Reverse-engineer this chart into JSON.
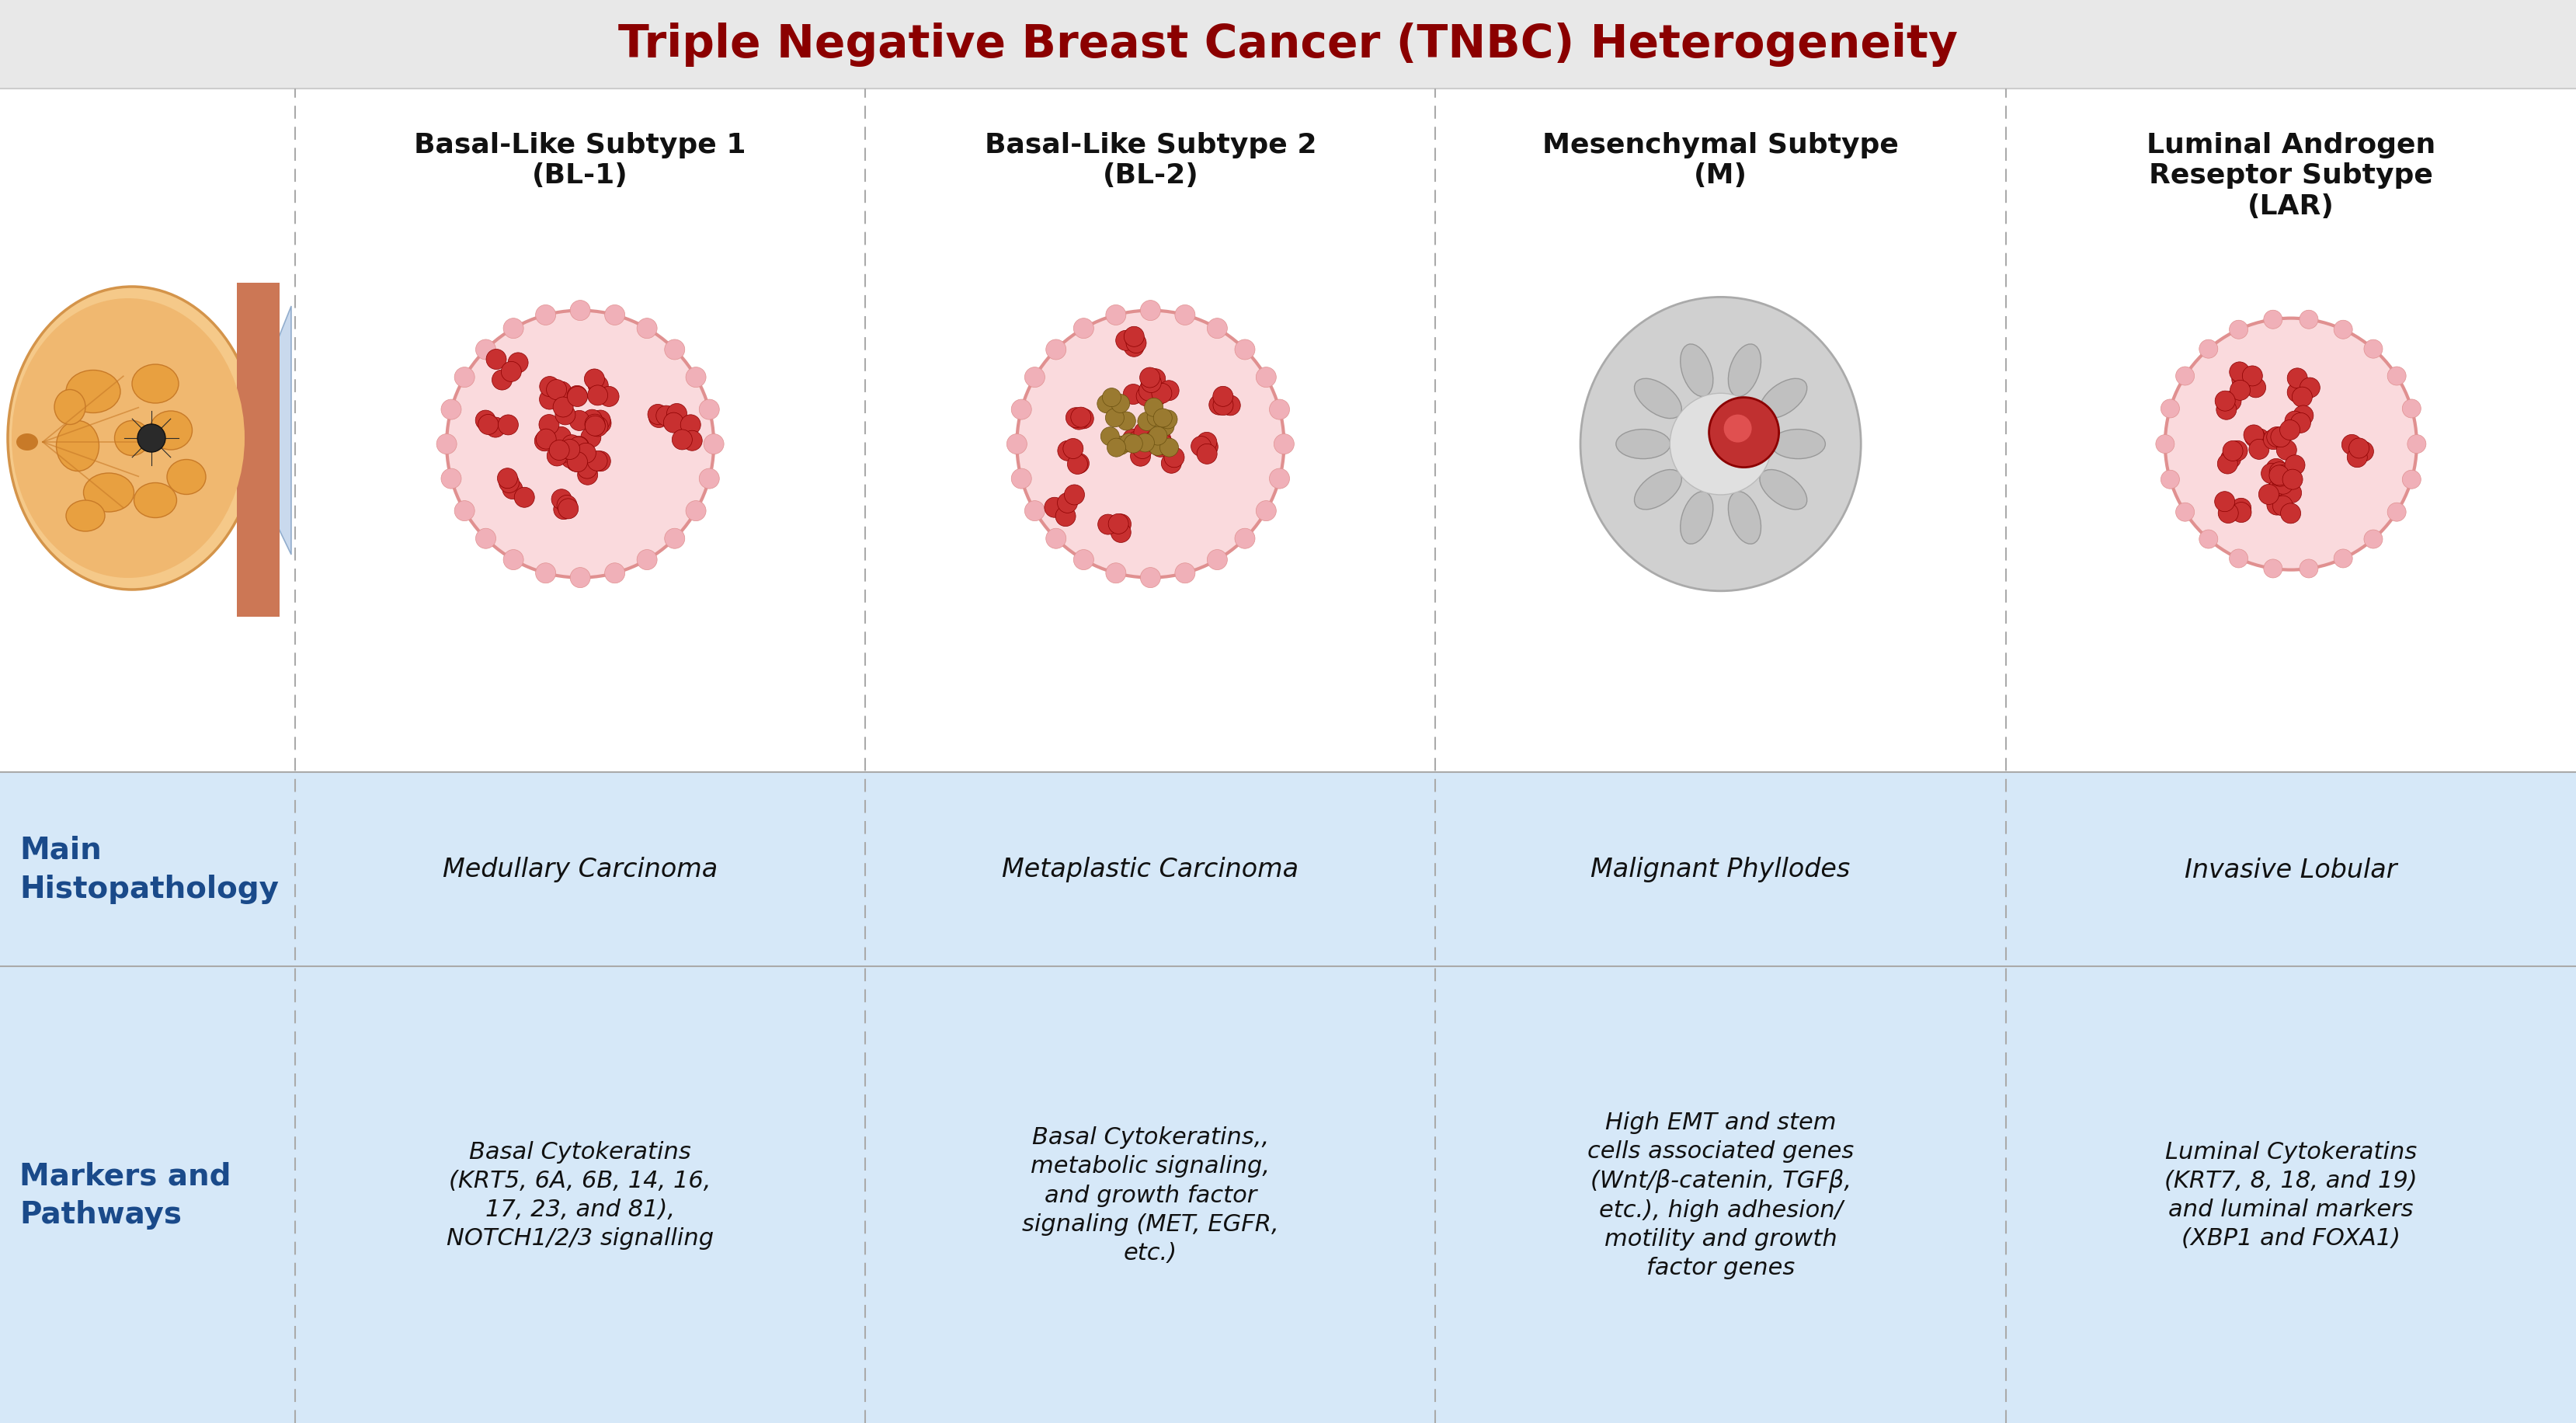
{
  "title": "Triple Negative Breast Cancer (TNBC) Heterogeneity",
  "title_color": "#8B0000",
  "title_fontsize": 42,
  "title_bg_color": "#E8E8E8",
  "table_bg_color": "#D6E8F8",
  "subtypes": [
    "Basal-Like Subtype 1\n(BL-1)",
    "Basal-Like Subtype 2\n(BL-2)",
    "Mesenchymal Subtype\n(M)",
    "Luminal Androgen\nReseptor Subtype\n(LAR)"
  ],
  "subtype_fontsize": 26,
  "row_label_color": "#1a4a8a",
  "row_label_fontsize": 28,
  "row_labels": [
    "Main\nHistopathology",
    "Markers and\nPathways"
  ],
  "histopathology": [
    "Medullary Carcinoma",
    "Metaplastic Carcinoma",
    "Malignant Phyllodes",
    "Invasive Lobular"
  ],
  "markers": [
    "Basal Cytokeratins\n(KRT5, 6A, 6B, 14, 16,\n17, 23, and 81),\nNOTCH1/2/3 signalling",
    "Basal Cytokeratins,,\nmetabolic signaling,\nand growth factor\nsignaling (MET, EGFR,\netc.)",
    "High EMT and stem\ncells associated genes\n(Wnt/β-catenin, TGFβ,\netc.), high adhesion/\nmotility and growth\nfactor genes",
    "Luminal Cytokeratins\n(KRT7, 8, 18, and 19)\nand luminal markers\n(XBP1 and FOXA1)"
  ],
  "cell_fontsize": 22,
  "hist_fontsize": 24
}
